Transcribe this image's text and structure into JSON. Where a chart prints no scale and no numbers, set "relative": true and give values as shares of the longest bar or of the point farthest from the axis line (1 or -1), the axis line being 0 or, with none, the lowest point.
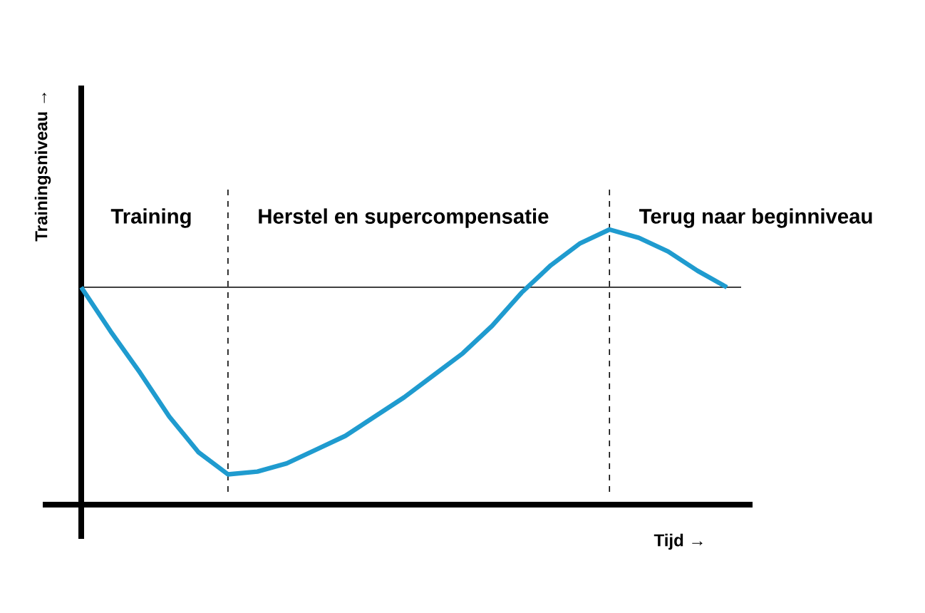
{
  "chart_data": {
    "type": "line",
    "relative": true,
    "xlabel": "Tijd →",
    "ylabel": "Trainingsniveau →",
    "categories": [
      null,
      null,
      null,
      null,
      null,
      null,
      null,
      null,
      null,
      null,
      null,
      null,
      null,
      null,
      null,
      null,
      null,
      null,
      null,
      null,
      null,
      null,
      null
    ],
    "values": [
      0.79,
      0.63,
      0.48,
      0.32,
      0.19,
      0.11,
      0.12,
      0.15,
      0.2,
      0.25,
      0.32,
      0.39,
      0.47,
      0.55,
      0.65,
      0.77,
      0.87,
      0.95,
      1.0,
      0.97,
      0.92,
      0.85,
      0.79
    ],
    "color": "#1f9bcf",
    "marker": "none",
    "line_style": "solid",
    "ref_lines": [
      {
        "axis": "y",
        "value": 0.79,
        "color": "#000000",
        "line_style": "solid"
      }
    ],
    "annotations": [
      "Training",
      "Herstel en supercompensatie",
      "Terug naar beginniveau"
    ]
  }
}
